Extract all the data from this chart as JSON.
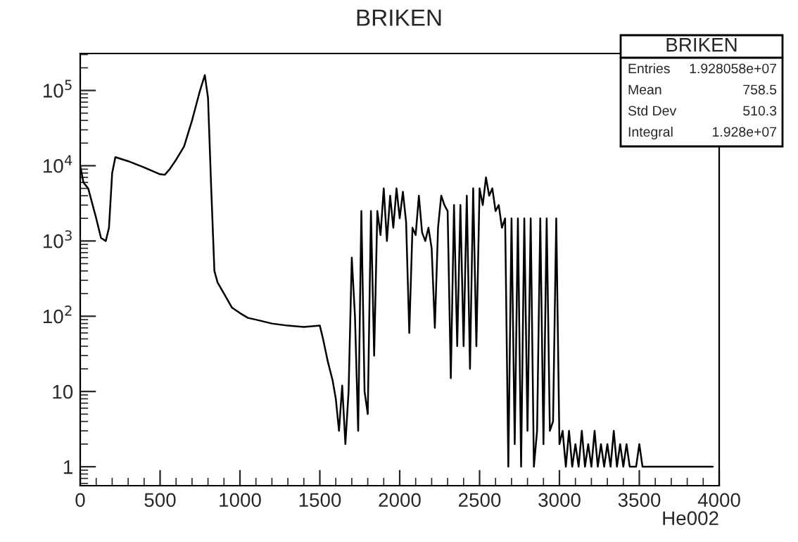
{
  "chart_data": {
    "type": "line",
    "title": "BRIKEN",
    "xlabel": "He002",
    "color": "#000000",
    "annotations": [
      "BRIKEN",
      "Entries",
      "1.928058e+07",
      "Mean",
      "758.5",
      "Std Dev",
      "510.3",
      "Integral",
      "1.928e+07"
    ],
    "x": [
      0,
      20,
      50,
      100,
      130,
      160,
      180,
      200,
      220,
      300,
      400,
      500,
      530,
      560,
      600,
      650,
      700,
      750,
      780,
      800,
      820,
      840,
      860,
      900,
      950,
      1000,
      1050,
      1100,
      1200,
      1300,
      1400,
      1500,
      1520,
      1550,
      1580,
      1600,
      1620,
      1640,
      1660,
      1680,
      1700,
      1720,
      1740,
      1760,
      1780,
      1800,
      1820,
      1840,
      1860,
      1880,
      1900,
      1920,
      1940,
      1960,
      1980,
      2000,
      2020,
      2040,
      2060,
      2080,
      2100,
      2120,
      2140,
      2160,
      2180,
      2200,
      2220,
      2240,
      2260,
      2280,
      2300,
      2320,
      2340,
      2360,
      2380,
      2400,
      2420,
      2440,
      2460,
      2480,
      2500,
      2520,
      2540,
      2560,
      2580,
      2600,
      2620,
      2640,
      2660,
      2680,
      2700,
      2720,
      2740,
      2760,
      2780,
      2800,
      2820,
      2840,
      2860,
      2880,
      2900,
      2920,
      2940,
      2960,
      2980,
      3000,
      3020,
      3040,
      3060,
      3080,
      3100,
      3120,
      3140,
      3160,
      3180,
      3200,
      3220,
      3240,
      3260,
      3280,
      3300,
      3320,
      3340,
      3360,
      3380,
      3400,
      3420,
      3440,
      3460,
      3480,
      3500,
      3520,
      3560,
      3580,
      3600,
      3660,
      3760,
      3860,
      3880,
      3960
    ],
    "values": [
      10000,
      6000,
      5000,
      2000,
      1100,
      1000,
      1500,
      8000,
      13000,
      11500,
      9500,
      7700,
      7600,
      9000,
      12000,
      18000,
      40000,
      100000,
      160000,
      80000,
      5000,
      400,
      280,
      200,
      130,
      110,
      95,
      90,
      80,
      75,
      72,
      75,
      50,
      25,
      14,
      8,
      3,
      12,
      2,
      10,
      600,
      100,
      3,
      2500,
      10,
      5,
      2500,
      30,
      2500,
      1200,
      5000,
      1000,
      4000,
      1500,
      5000,
      2000,
      4500,
      1800,
      60,
      1500,
      1200,
      4000,
      1300,
      1000,
      1500,
      800,
      70,
      1500,
      4000,
      3000,
      2500,
      15,
      3000,
      40,
      3000,
      40,
      4000,
      20,
      5000,
      40,
      5000,
      3000,
      7000,
      4000,
      5000,
      2500,
      3000,
      1500,
      2000,
      1,
      2000,
      2,
      2000,
      1,
      2000,
      3,
      2000,
      1,
      3,
      2000,
      2,
      2000,
      3,
      4,
      2000,
      2,
      3,
      1,
      3,
      1,
      2,
      1,
      3,
      1,
      2,
      1,
      3,
      1,
      2,
      1,
      2,
      1,
      3,
      1,
      2,
      1,
      2,
      1,
      1,
      1,
      2,
      1,
      1,
      1,
      1,
      1,
      1,
      1,
      1,
      1
    ],
    "xlim": [
      0,
      4000
    ],
    "xticks": [
      0,
      500,
      1000,
      1500,
      2000,
      2500,
      3000,
      3500,
      4000
    ],
    "ylim": [
      0.56,
      310000
    ],
    "log": true,
    "yticks": [
      1,
      10,
      {
        "value": 100,
        "label": "10$^{2}$"
      },
      {
        "value": 1000,
        "label": "10$^{3}$"
      },
      {
        "value": 10000,
        "label": "10$^{4}$"
      },
      {
        "value": 100000,
        "label": "10$^{5}$"
      }
    ],
    "grid": false,
    "legend": false
  }
}
